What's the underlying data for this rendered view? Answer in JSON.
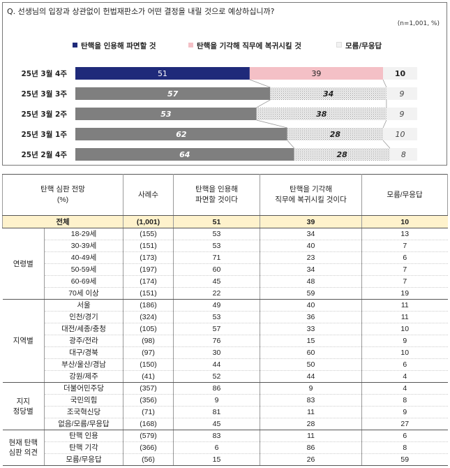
{
  "question": "Q. 선생님의 입장과 상관없이 헌법재판소가 어떤 결정을 내릴 것으로 예상하십니까?",
  "sample_note": "(n=1,001, %)",
  "colors": {
    "impeach": "#1f2a7a",
    "impeach_past": "#7f7f7f",
    "reinstate": "#f4c0c6",
    "reinstate_past": "#e6e6e6",
    "unknown": "#f2f2f2",
    "total_row": "#fef2cc"
  },
  "legend": [
    {
      "label": "탄핵을 인용해 파면할 것",
      "color": "#1f2a7a"
    },
    {
      "label": "탄핵을 기각해 직무에 복귀시킬 것",
      "color": "#f4c0c6"
    },
    {
      "label": "모름/무응답",
      "color": "#f2f2f2"
    }
  ],
  "chart_data": {
    "type": "bar",
    "orientation": "horizontal-stacked-100",
    "categories": [
      "25년 3월 4주",
      "25년 3월 3주",
      "25년 3월 2주",
      "25년 3월 1주",
      "25년 2월 4주"
    ],
    "series": [
      {
        "name": "탄핵을 인용해 파면할 것",
        "values": [
          51,
          57,
          53,
          62,
          64
        ]
      },
      {
        "name": "탄핵을 기각해 직무에 복귀시킬 것",
        "values": [
          39,
          34,
          38,
          28,
          28
        ]
      },
      {
        "name": "모름/무응답",
        "values": [
          10,
          9,
          9,
          10,
          8
        ]
      }
    ]
  },
  "table": {
    "headers": [
      "탄핵 심판 전망\n(%)",
      "사례수",
      "탄핵을 인용해\n파면할 것이다",
      "탄핵을 기각해\n직무에 복귀시킬 것이다",
      "모름/무응답"
    ],
    "total": {
      "label": "전체",
      "n": "(1,001)",
      "v1": "51",
      "v2": "39",
      "v3": "10"
    },
    "groups": [
      {
        "name": "연령별",
        "rows": [
          {
            "label": "18-29세",
            "n": "(155)",
            "v1": "53",
            "v2": "34",
            "v3": "13"
          },
          {
            "label": "30-39세",
            "n": "(151)",
            "v1": "53",
            "v2": "40",
            "v3": "7"
          },
          {
            "label": "40-49세",
            "n": "(173)",
            "v1": "71",
            "v2": "23",
            "v3": "6"
          },
          {
            "label": "50-59세",
            "n": "(197)",
            "v1": "60",
            "v2": "34",
            "v3": "7"
          },
          {
            "label": "60-69세",
            "n": "(174)",
            "v1": "45",
            "v2": "48",
            "v3": "7"
          },
          {
            "label": "70세 이상",
            "n": "(151)",
            "v1": "22",
            "v2": "59",
            "v3": "19"
          }
        ]
      },
      {
        "name": "지역별",
        "rows": [
          {
            "label": "서울",
            "n": "(186)",
            "v1": "49",
            "v2": "40",
            "v3": "11"
          },
          {
            "label": "인천/경기",
            "n": "(324)",
            "v1": "53",
            "v2": "36",
            "v3": "11"
          },
          {
            "label": "대전/세종/충청",
            "n": "(105)",
            "v1": "57",
            "v2": "33",
            "v3": "10"
          },
          {
            "label": "광주/전라",
            "n": "(98)",
            "v1": "76",
            "v2": "15",
            "v3": "9"
          },
          {
            "label": "대구/경북",
            "n": "(97)",
            "v1": "30",
            "v2": "60",
            "v3": "10"
          },
          {
            "label": "부산/울산/경남",
            "n": "(150)",
            "v1": "44",
            "v2": "50",
            "v3": "6"
          },
          {
            "label": "강원/제주",
            "n": "(41)",
            "v1": "52",
            "v2": "44",
            "v3": "4"
          }
        ]
      },
      {
        "name": "지지\n정당별",
        "rows": [
          {
            "label": "더불어민주당",
            "n": "(357)",
            "v1": "86",
            "v2": "9",
            "v3": "4"
          },
          {
            "label": "국민의힘",
            "n": "(356)",
            "v1": "9",
            "v2": "83",
            "v3": "8"
          },
          {
            "label": "조국혁신당",
            "n": "(71)",
            "v1": "81",
            "v2": "11",
            "v3": "9"
          },
          {
            "label": "없음/모름/무응답",
            "n": "(168)",
            "v1": "45",
            "v2": "28",
            "v3": "27"
          }
        ]
      },
      {
        "name": "현재 탄핵\n심판 의견",
        "rows": [
          {
            "label": "탄핵 인용",
            "n": "(579)",
            "v1": "83",
            "v2": "11",
            "v3": "6"
          },
          {
            "label": "탄핵 기각",
            "n": "(366)",
            "v1": "6",
            "v2": "86",
            "v3": "8"
          },
          {
            "label": "모름/무응답",
            "n": "(56)",
            "v1": "15",
            "v2": "26",
            "v3": "59"
          }
        ]
      }
    ]
  }
}
